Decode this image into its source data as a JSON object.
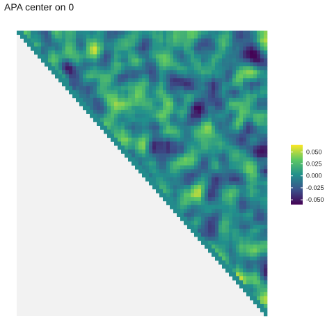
{
  "title": "APA center on 0",
  "chart_data": {
    "type": "heatmap",
    "title": "APA center on 0",
    "shape": "upper-triangular matrix",
    "grid_size": 72,
    "xlabel": "",
    "ylabel": "",
    "fill_below_diagonal": "#f2f2f2",
    "colormap": "viridis",
    "colors": [
      "#440154",
      "#3b528b",
      "#21908c",
      "#5dc863",
      "#fde725"
    ],
    "value_range": [
      -0.06,
      0.065
    ],
    "legend": {
      "placement": "right",
      "ticks": [
        0.05,
        0.025,
        0.0,
        -0.025,
        -0.05
      ],
      "tick_labels": [
        "0.050",
        "0.025",
        "0.000",
        "-0.025",
        "-0.050"
      ]
    },
    "random_seed": 7
  }
}
